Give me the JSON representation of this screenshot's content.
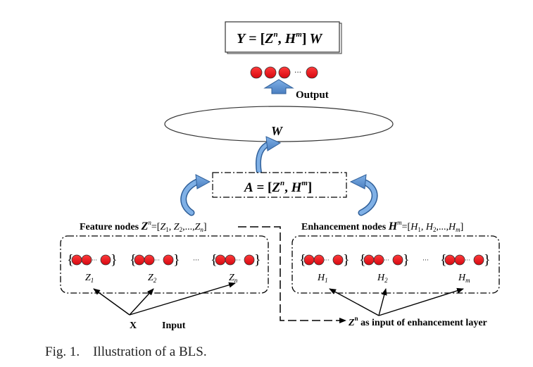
{
  "output_formula": {
    "lhs": "Y",
    "eq": " = ",
    "lb": "[",
    "z": "Z",
    "z_sup": "n",
    "comma": ", ",
    "h": "H",
    "h_sup": "m",
    "rb": "]",
    "w": "W"
  },
  "output_label": "Output",
  "weight_label": "W",
  "hidden_formula": {
    "lhs": "A",
    "eq": " = ",
    "lb": "[",
    "z": "Z",
    "z_sup": "n",
    "comma": ", ",
    "h": "H",
    "h_sup": "m",
    "rb": "]"
  },
  "feature_nodes": {
    "title": "Feature nodes ",
    "z": "Z",
    "z_sup": "n",
    "eq": "=[",
    "z1": "Z",
    "z1_sub": "1",
    "sep1": ", ",
    "z2": "Z",
    "z2_sub": "2",
    "sep2": ",...,",
    "zn": "Z",
    "zn_sub": "n",
    "rb": "]",
    "groups": [
      {
        "label": "Z",
        "sub": "1"
      },
      {
        "label": "Z",
        "sub": "2"
      },
      {
        "label": "Z",
        "sub": "n"
      }
    ]
  },
  "enhancement_nodes": {
    "title": "Enhancement nodes ",
    "h": "H",
    "h_sup": "m",
    "eq": "=[",
    "h1": "H",
    "h1_sub": "1",
    "sep1": ", ",
    "h2": "H",
    "h2_sub": "2",
    "sep2": ",...,",
    "hm": "H",
    "hm_sub": "m",
    "rb": "]",
    "groups": [
      {
        "label": "H",
        "sub": "1"
      },
      {
        "label": "H",
        "sub": "2"
      },
      {
        "label": "H",
        "sub": "m"
      }
    ]
  },
  "input": {
    "x_label": "X",
    "input_label": "Input"
  },
  "enhancement_input_note": {
    "z": "Z",
    "z_sup": "n",
    "text": " as input of enhancement layer"
  },
  "ellipsis": "···",
  "caption": "Fig. 1.    Illustration of a BLS.",
  "colors": {
    "node": "#e8101a",
    "arrow": "#5b8fcd",
    "arrow_stroke": "#2f5f99"
  }
}
